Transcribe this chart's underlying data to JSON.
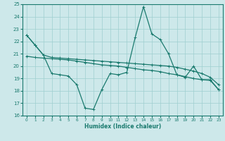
{
  "xlabel": "Humidex (Indice chaleur)",
  "xlim": [
    -0.5,
    23.5
  ],
  "ylim": [
    16,
    25
  ],
  "yticks": [
    16,
    17,
    18,
    19,
    20,
    21,
    22,
    23,
    24,
    25
  ],
  "xticks": [
    0,
    1,
    2,
    3,
    4,
    5,
    6,
    7,
    8,
    9,
    10,
    11,
    12,
    13,
    14,
    15,
    16,
    17,
    18,
    19,
    20,
    21,
    22,
    23
  ],
  "bg_color": "#cde8ea",
  "grid_color": "#9ecfcf",
  "line_color": "#1a7a6e",
  "line1_x": [
    0,
    1,
    2,
    3,
    4,
    5,
    6,
    7,
    8,
    9,
    10,
    11,
    12,
    13,
    14,
    15,
    16,
    17,
    18,
    19,
    20,
    21,
    22,
    23
  ],
  "line1_y": [
    22.5,
    21.7,
    20.9,
    20.7,
    20.65,
    20.6,
    20.55,
    20.5,
    20.45,
    20.4,
    20.35,
    20.3,
    20.25,
    20.2,
    20.15,
    20.1,
    20.05,
    20.0,
    19.9,
    19.75,
    19.6,
    19.4,
    19.1,
    18.5
  ],
  "line2_x": [
    0,
    1,
    2,
    3,
    4,
    5,
    6,
    7,
    8,
    9,
    10,
    11,
    12,
    13,
    14,
    15,
    16,
    17,
    18,
    19,
    20,
    21,
    22,
    23
  ],
  "line2_y": [
    22.5,
    21.7,
    20.9,
    19.4,
    19.3,
    19.2,
    18.5,
    16.6,
    16.5,
    18.1,
    19.4,
    19.3,
    19.5,
    22.3,
    24.8,
    22.6,
    22.15,
    21.0,
    19.3,
    19.1,
    20.0,
    18.9,
    18.9,
    18.1
  ],
  "line3_x": [
    0,
    1,
    2,
    3,
    4,
    5,
    6,
    7,
    8,
    9,
    10,
    11,
    12,
    13,
    14,
    15,
    16,
    17,
    18,
    19,
    20,
    21,
    22,
    23
  ],
  "line3_y": [
    20.8,
    20.7,
    20.65,
    20.6,
    20.55,
    20.5,
    20.4,
    20.3,
    20.2,
    20.1,
    20.05,
    20.0,
    19.9,
    19.8,
    19.7,
    19.65,
    19.55,
    19.4,
    19.3,
    19.15,
    19.0,
    18.9,
    18.85,
    18.1
  ]
}
